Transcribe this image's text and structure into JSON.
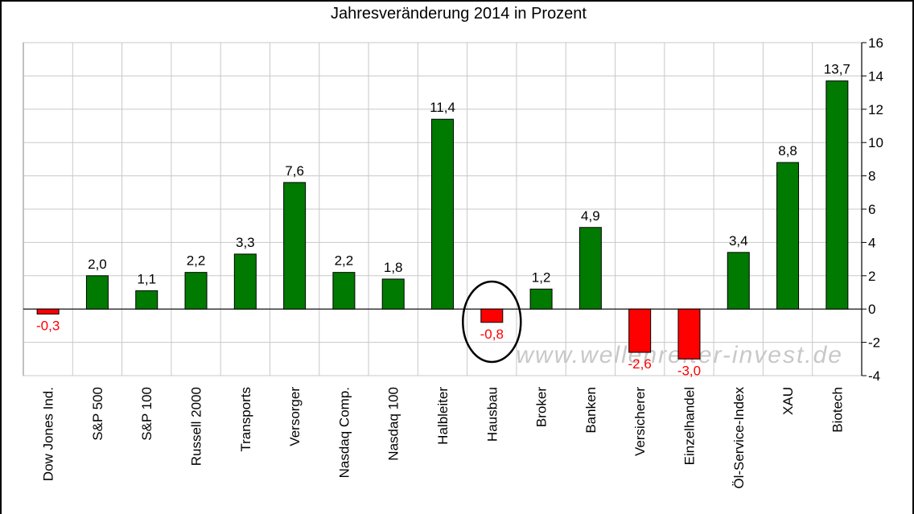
{
  "chart_data": {
    "type": "bar",
    "title": "Jahresveränderung 2014 in Prozent",
    "categories": [
      "Dow Jones Ind.",
      "S&P 500",
      "S&P 100",
      "Russell 2000",
      "Transports",
      "Versorger",
      "Nasdaq Comp.",
      "Nasdaq 100",
      "Halbleiter",
      "Hausbau",
      "Broker",
      "Banken",
      "Versicherer",
      "Einzelhandel",
      "Öl-Service-Index",
      "XAU",
      "Biotech"
    ],
    "values": [
      -0.3,
      2.0,
      1.1,
      2.2,
      3.3,
      7.6,
      2.2,
      1.8,
      11.4,
      -0.8,
      1.2,
      4.9,
      -2.6,
      -3.0,
      3.4,
      8.8,
      13.7
    ],
    "value_labels": [
      "-0,3",
      "2,0",
      "1,1",
      "2,2",
      "3,3",
      "7,6",
      "2,2",
      "1,8",
      "11,4",
      "-0,8",
      "1,2",
      "4,9",
      "-2,6",
      "-3,0",
      "3,4",
      "8,8",
      "13,7"
    ],
    "ylim": [
      -4,
      16
    ],
    "yticks": [
      -4,
      -2,
      0,
      2,
      4,
      6,
      8,
      10,
      12,
      14,
      16
    ],
    "ytick_labels": [
      "-4",
      "-2",
      "0",
      "2",
      "4",
      "6",
      "8",
      "10",
      "12",
      "14",
      "16"
    ],
    "y_axis_side": "right",
    "grid": true,
    "colors": {
      "positive": "#007a00",
      "negative": "#ff0000",
      "negative_label": "#ff0000",
      "positive_label": "#000000"
    },
    "highlighted_category": "Hausbau",
    "watermark": "www.wellenreiter-invest.de"
  }
}
